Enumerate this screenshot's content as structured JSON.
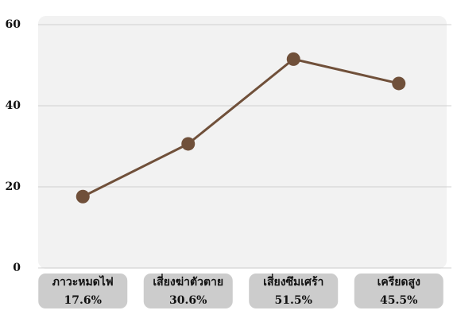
{
  "chart_data": {
    "type": "line",
    "categories": [
      "ภาวะหมดไฟ",
      "เสี่ยงฆ่าตัวตาย",
      "เสี่ยงซึมเศร้า",
      "เครียดสูง"
    ],
    "series": [
      {
        "color": "#70503a",
        "values": [
          17.6,
          30.6,
          51.5,
          45.5
        ],
        "value_labels": [
          "17.6%",
          "30.6%",
          "51.5%",
          "45.5%"
        ]
      }
    ],
    "ylim": [
      0,
      60
    ],
    "yticks": [
      0,
      20,
      40,
      60
    ],
    "grid": true
  }
}
